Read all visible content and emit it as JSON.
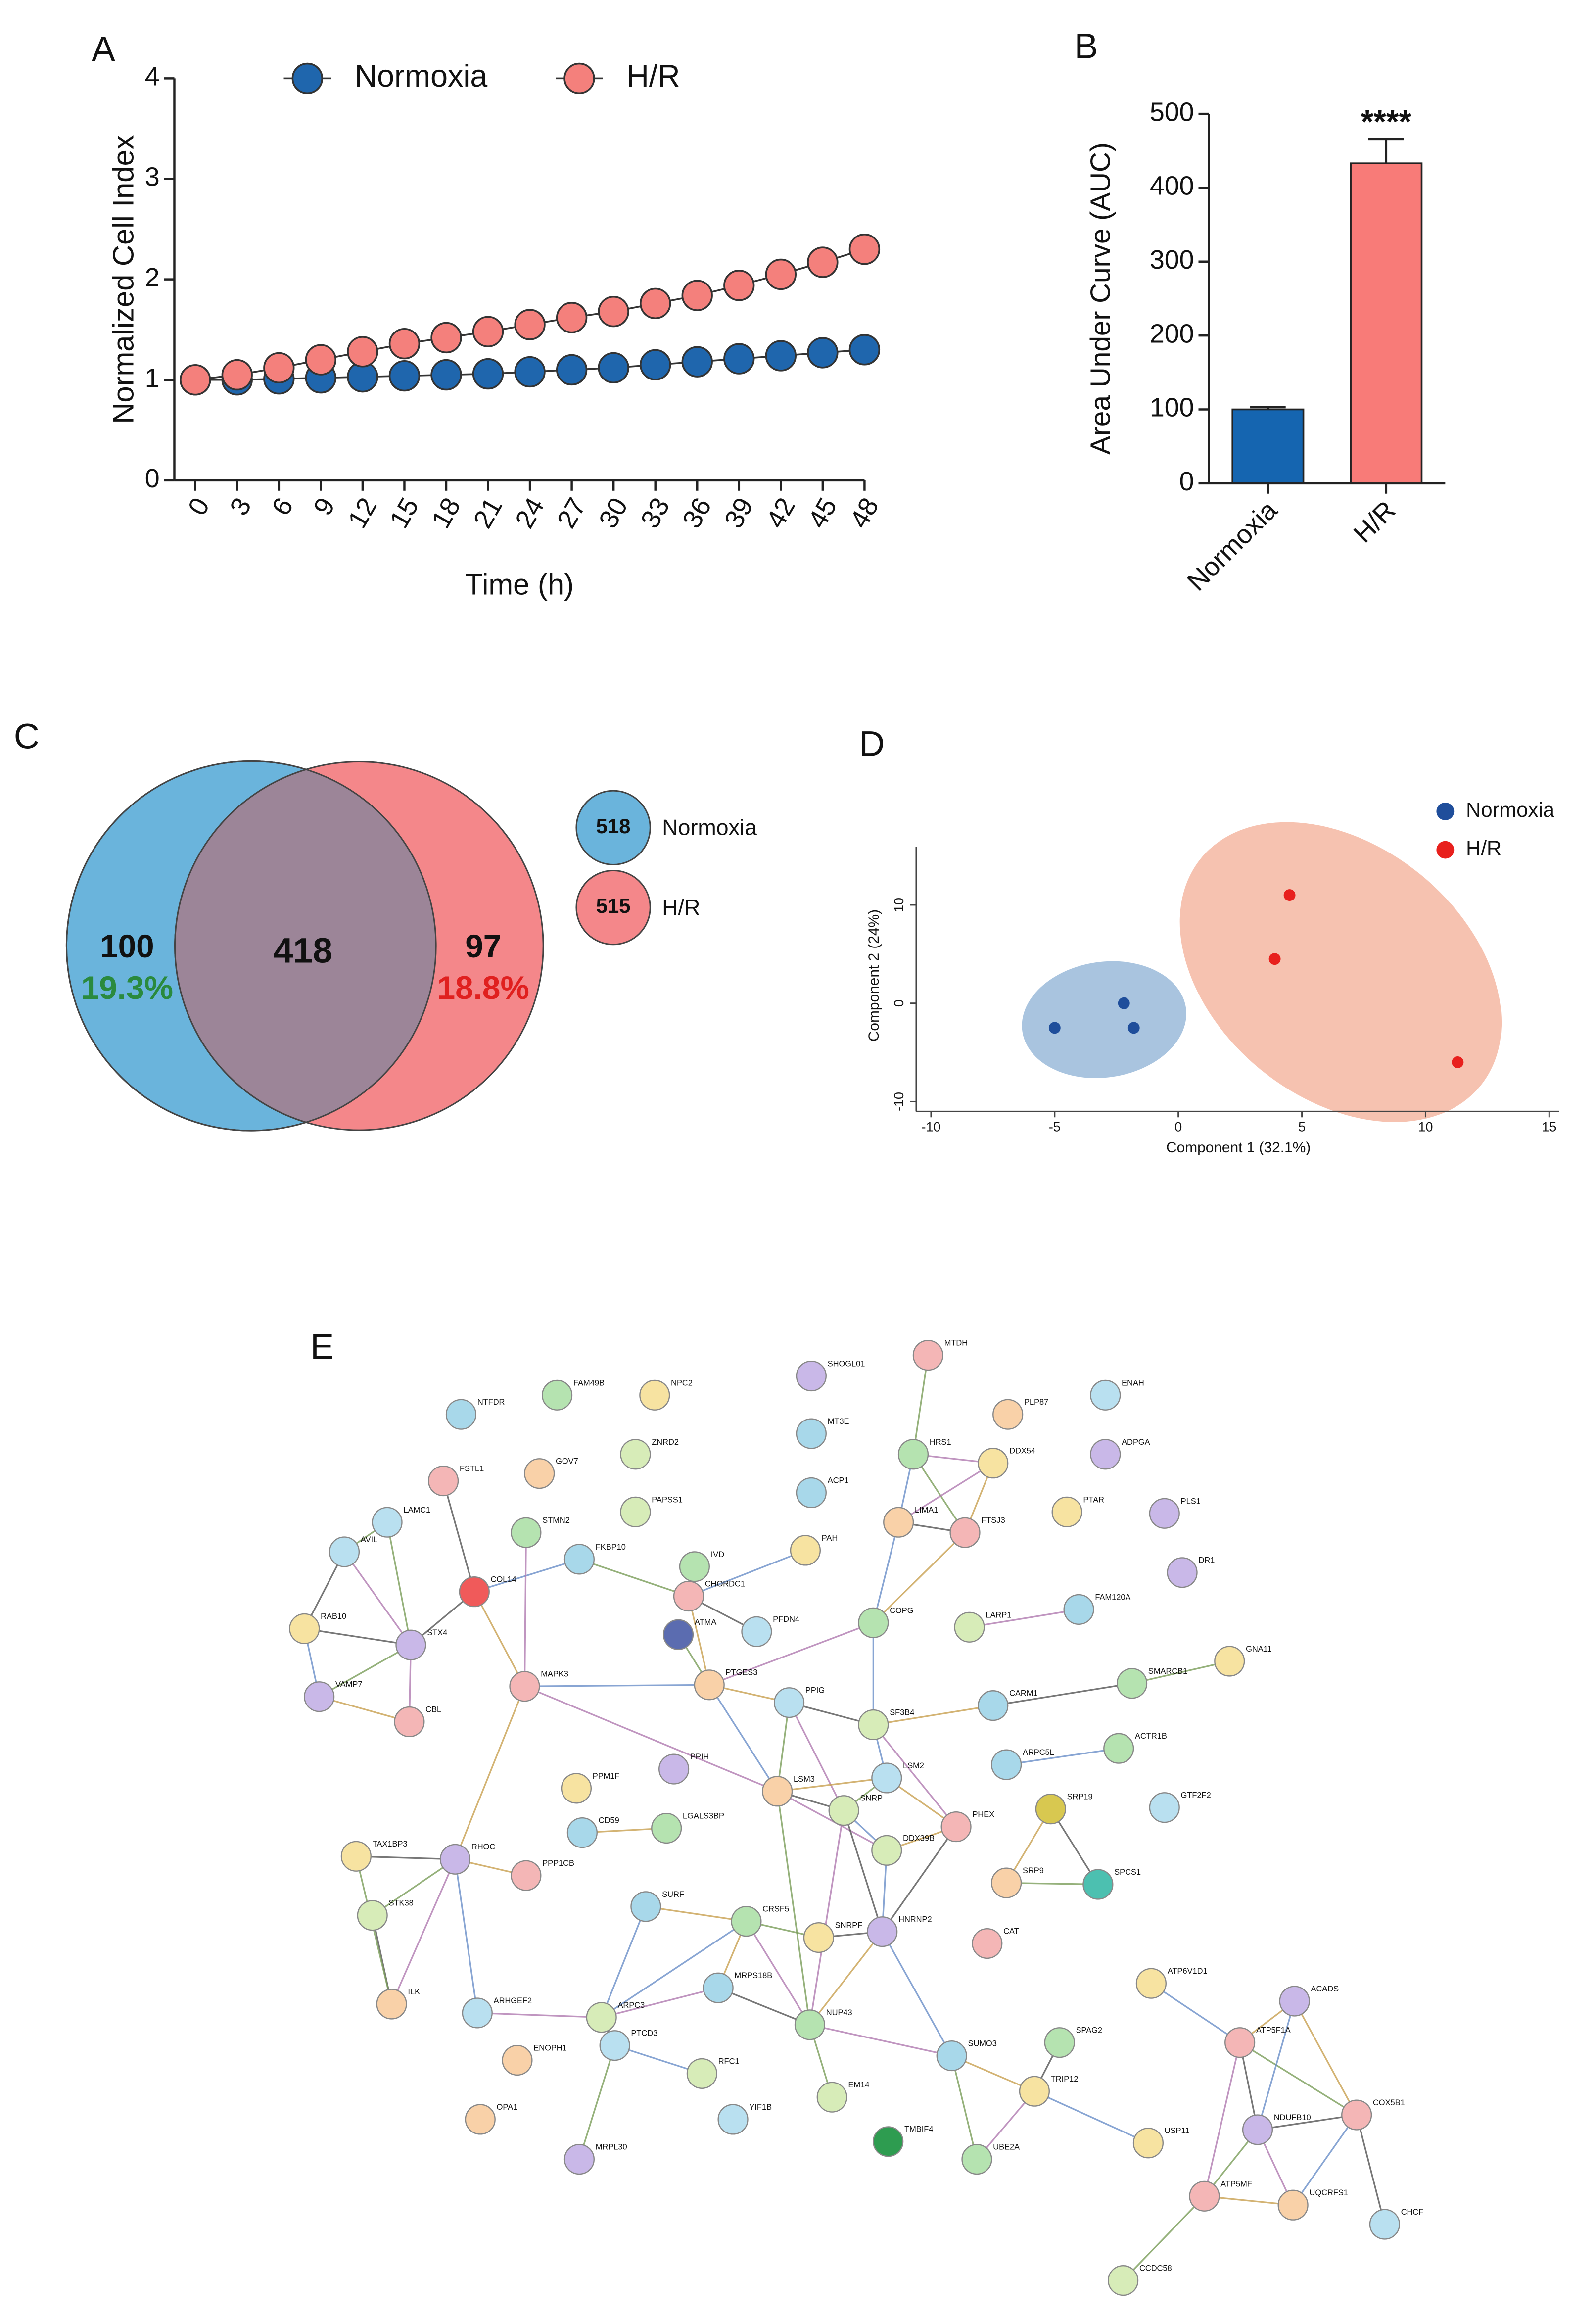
{
  "chart_data": [
    {
      "type": "line",
      "panel": "A",
      "xlabel": "Time (h)",
      "ylabel": "Normalized Cell Index",
      "x": [
        0,
        3,
        6,
        9,
        12,
        15,
        18,
        21,
        24,
        27,
        30,
        33,
        36,
        39,
        42,
        45,
        48
      ],
      "series": [
        {
          "name": "Normoxia",
          "color": "#1f66ad",
          "values": [
            1,
            1,
            1.01,
            1.02,
            1.03,
            1.04,
            1.05,
            1.06,
            1.08,
            1.1,
            1.12,
            1.15,
            1.18,
            1.21,
            1.24,
            1.27,
            1.3
          ]
        },
        {
          "name": "H/R",
          "color": "#f4807c",
          "values": [
            1,
            1.05,
            1.12,
            1.2,
            1.28,
            1.36,
            1.42,
            1.48,
            1.55,
            1.62,
            1.68,
            1.76,
            1.84,
            1.94,
            2.05,
            2.17,
            2.3
          ]
        }
      ],
      "xlim": [
        -1.5,
        48
      ],
      "xticks": [
        0,
        3,
        6,
        9,
        12,
        15,
        18,
        21,
        24,
        27,
        30,
        33,
        36,
        39,
        42,
        45,
        48
      ],
      "ylim": [
        0,
        4
      ],
      "yticks": [
        0,
        1,
        2,
        3,
        4
      ],
      "legend": "top"
    },
    {
      "type": "bar",
      "panel": "B",
      "ylabel": "Area Under Curve (AUC)",
      "categories": [
        "Normoxia",
        "H/R"
      ],
      "values": [
        100,
        433
      ],
      "errors": [
        3,
        33
      ],
      "colors": [
        "#1565b0",
        "#f87b78"
      ],
      "ylim": [
        0,
        500
      ],
      "yticks": [
        0,
        100,
        200,
        300,
        400,
        500
      ],
      "annotation": "****"
    },
    {
      "type": "venn",
      "panel": "C",
      "sets": [
        {
          "name": "Normoxia",
          "color": "#6ab4dc",
          "size": 518,
          "only": 100,
          "percent": 19.3,
          "percent_label": "19.3%",
          "percent_color": "#2a8a3e"
        },
        {
          "name": "H/R",
          "color": "#f4878a",
          "size": 515,
          "only": 97,
          "percent": 18.8,
          "percent_label": "18.8%",
          "percent_color": "#e0201f"
        }
      ],
      "overlap": 418,
      "overlap_color": "#9c8598"
    },
    {
      "type": "scatter",
      "panel": "D",
      "xlabel": "Component 1 (32.1%)",
      "ylabel": "Component 2 (24%)",
      "series": [
        {
          "name": "Normoxia",
          "color": "#1f4e9b",
          "fill": "#a9c4df",
          "x": [
            -5,
            -2.2,
            -1.8
          ],
          "values": [
            -2.5,
            0,
            -2.5
          ]
        },
        {
          "name": "H/R",
          "color": "#e8201d",
          "fill": "#f6c2b0",
          "x": [
            4.5,
            3.9,
            11.3
          ],
          "values": [
            11,
            4.5,
            -6
          ]
        }
      ],
      "xlim": [
        -10.6,
        15.4
      ],
      "xticks": [
        -10,
        -5,
        0,
        5,
        10,
        15
      ],
      "ylim": [
        -11,
        15.9
      ],
      "yticks": [
        -10,
        0,
        10
      ],
      "legend": "upper right"
    },
    {
      "type": "network",
      "panel": "E",
      "nodes": [
        "NTFDR",
        "FAM49B",
        "NPC2",
        "SHOGL01",
        "MTDH",
        "PLP87",
        "ENAH",
        "ZNRD2",
        "MT3E",
        "HRS1",
        "DDX54",
        "ADPGA",
        "FSTL1",
        "GOV7",
        "LAMC1",
        "PAPSS1",
        "ACP1",
        "STMN2",
        "PTAR",
        "PLS1",
        "FTSJ3",
        "LIMA1",
        "AVIL",
        "COL14",
        "FKBP10",
        "IVD",
        "PAH",
        "DR1",
        "CHORDC1",
        "ATMA",
        "PFDN4",
        "LARP1",
        "FAM120A",
        "COPG",
        "RAB10",
        "STX4",
        "MAPK3",
        "PTGES3",
        "PPIG",
        "SF3B4",
        "CARM1",
        "SMARCB1",
        "GNA11",
        "VAMP7",
        "CBL",
        "LSM3",
        "LSM2",
        "SNRP",
        "ARPC5L",
        "ACTR1B",
        "PPM1F",
        "PPIH",
        "PHEX",
        "SRP19",
        "GTF2F2",
        "DDX39B",
        "CD59",
        "LGALS3BP",
        "TAX1BP3",
        "RHOC",
        "PPP1CB",
        "SRP9",
        "SPCS1",
        "STK38",
        "SURF",
        "CRSF5",
        "SNRPF",
        "HNRNP2",
        "CAT",
        "ILK",
        "ARHGEF2",
        "ARPC3",
        "MRPS18B",
        "NUP43",
        "ATP6V1D1",
        "ACADS",
        "ATP5F1A",
        "ENOPH1",
        "PTCD3",
        "RFC1",
        "SUMO3",
        "SPAG2",
        "TRIP12",
        "NDUFB10",
        "COX5B1",
        "OPA1",
        "YIF1B",
        "EM14",
        "TMBIF4",
        "UBE2A",
        "USP11",
        "MRPL30",
        "ATP5MF",
        "UQCRFS1",
        "CHCF",
        "CCDC58"
      ]
    }
  ]
}
